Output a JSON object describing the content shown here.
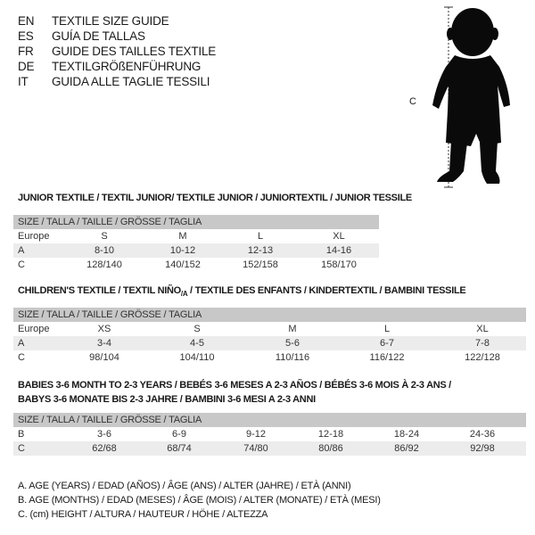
{
  "languages": [
    {
      "code": "EN",
      "text": "TEXTILE SIZE GUIDE"
    },
    {
      "code": "ES",
      "text": "GUÍA DE TALLAS"
    },
    {
      "code": "FR",
      "text": "GUIDE DES TAILLES TEXTILE"
    },
    {
      "code": "DE",
      "text": "TEXTILGRÖßENFÜHRUNG"
    },
    {
      "code": "IT",
      "text": "GUIDA ALLE TAGLIE TESSILI"
    }
  ],
  "figure": {
    "c_label": "C"
  },
  "junior": {
    "title": "JUNIOR TEXTILE / TEXTIL JUNIOR/ TEXTILE JUNIOR / JUNIORTEXTIL / JUNIOR TESSILE",
    "header": "SIZE / TALLA / TAILLE / GRÖSSE / TAGLIA",
    "rows": [
      {
        "label": "Europe",
        "cells": [
          "S",
          "M",
          "L",
          "XL"
        ]
      },
      {
        "label": "A",
        "cells": [
          "8-10",
          "10-12",
          "12-13",
          "14-16"
        ]
      },
      {
        "label": "C",
        "cells": [
          "128/140",
          "140/152",
          "152/158",
          "158/170"
        ]
      }
    ]
  },
  "children": {
    "title_a": "CHILDREN'S TEXTILE / TEXTIL NIÑO",
    "title_sub": "/A",
    "title_b": " / TEXTILE DES ENFANTS / KINDERTEXTIL / BAMBINI TESSILE",
    "header": "SIZE / TALLA / TAILLE / GRÖSSE / TAGLIA",
    "rows": [
      {
        "label": "Europe",
        "cells": [
          "XS",
          "S",
          "M",
          "L",
          "XL"
        ]
      },
      {
        "label": "A",
        "cells": [
          "3-4",
          "4-5",
          "5-6",
          "6-7",
          "7-8"
        ]
      },
      {
        "label": "C",
        "cells": [
          "98/104",
          "104/110",
          "110/116",
          "116/122",
          "122/128"
        ]
      }
    ]
  },
  "babies": {
    "title_1": "BABIES 3-6 MONTH TO 2-3 YEARS / BEBÉS 3-6 MESES A 2-3 AÑOS / BÉBÉS 3-6 MOIS À 2-3 ANS /",
    "title_2": "BABYS 3-6 MONATE BIS 2-3 JAHRE / BAMBINI 3-6 MESI A 2-3 ANNI",
    "header": "SIZE / TALLA / TAILLE / GRÖSSE / TAGLIA",
    "rows": [
      {
        "label": "B",
        "cells": [
          "3-6",
          "6-9",
          "9-12",
          "12-18",
          "18-24",
          "24-36"
        ]
      },
      {
        "label": "C",
        "cells": [
          "62/68",
          "68/74",
          "74/80",
          "80/86",
          "86/92",
          "92/98"
        ]
      }
    ]
  },
  "legend": [
    "A. AGE (YEARS) / EDAD (AÑOS) / ÂGE (ANS) / ALTER (JAHRE) / ETÀ (ANNI)",
    "B. AGE (MONTHS) / EDAD (MESES) / ÂGE (MOIS) / ALTER (MONATE) / ETÀ (MESI)",
    "C. (cm) HEIGHT / ALTURA / HAUTEUR / HÖHE / ALTEZZA"
  ]
}
